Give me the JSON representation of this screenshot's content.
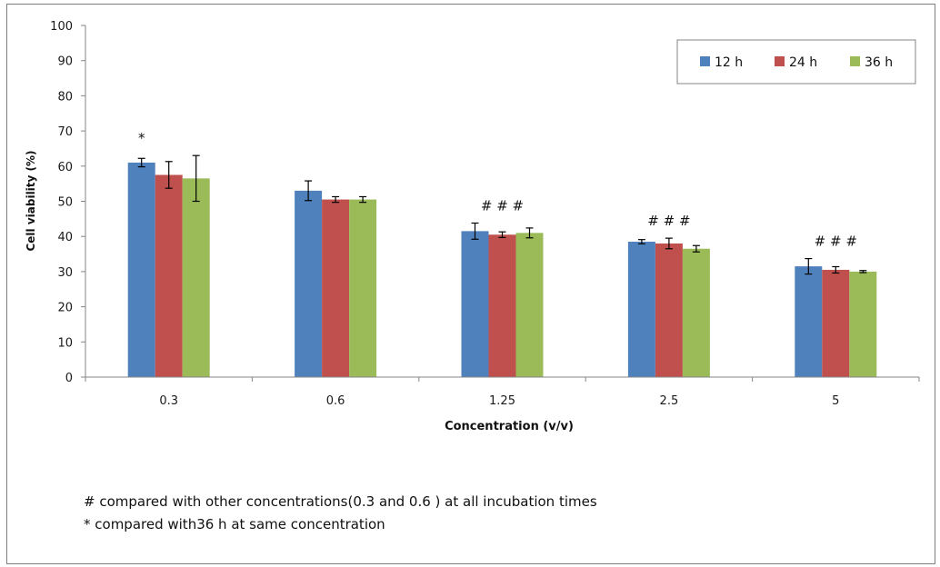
{
  "chart_data": {
    "type": "bar",
    "title": "",
    "xlabel": "Concentration (v/v)",
    "ylabel": "Cell viability (%)",
    "ylim": [
      0,
      100
    ],
    "yticks": [
      "0",
      "10",
      "20",
      "30",
      "40",
      "50",
      "60",
      "70",
      "80",
      "90",
      "100"
    ],
    "categories": [
      "0.3",
      "0.6",
      "1.25",
      "2.5",
      "5"
    ],
    "series": [
      {
        "name": "12 h",
        "color": "#4f81bd",
        "values": [
          61,
          53,
          41.5,
          38.5,
          31.5
        ],
        "errors": [
          1.2,
          2.8,
          2.3,
          0.6,
          2.2
        ]
      },
      {
        "name": "24 h",
        "color": "#c0504d",
        "values": [
          57.5,
          50.5,
          40.5,
          38,
          30.5
        ],
        "errors": [
          3.8,
          0.8,
          0.8,
          1.5,
          0.9
        ]
      },
      {
        "name": "36 h",
        "color": "#9bbb59",
        "values": [
          56.5,
          50.5,
          41,
          36.5,
          30
        ],
        "errors": [
          6.5,
          0.8,
          1.4,
          0.9,
          0.3
        ]
      }
    ],
    "legend": "top-right",
    "grid": false,
    "annotations": [
      {
        "category": "0.3",
        "label": "*"
      },
      {
        "category": "1.25",
        "label": "# # #"
      },
      {
        "category": "2.5",
        "label": "# # #"
      },
      {
        "category": "5",
        "label": "# # #"
      }
    ]
  },
  "notes": {
    "hash_note": "# compared with other concentrations(0.3 and 0.6 ) at all incubation times",
    "star_note": "* compared with36 h at same concentration"
  }
}
